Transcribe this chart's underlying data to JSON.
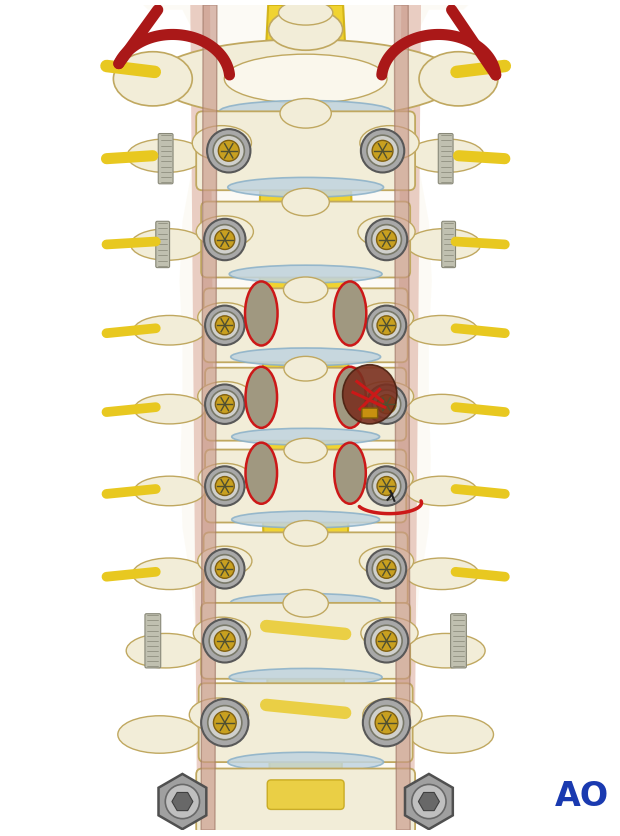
{
  "background_color": "#ffffff",
  "ao_text": "AO",
  "ao_color": "#1a3ab0",
  "ao_fontsize": 24,
  "figsize": [
    6.2,
    8.37
  ],
  "dpi": 100,
  "bone_color": "#f2edd8",
  "bone_light": "#faf7ec",
  "bone_outline": "#c0a860",
  "spinal_cord_yellow": "#f0d020",
  "disc_color": "#b8d8e8",
  "disc_outline": "#90b8cc",
  "screw_outer": "#909090",
  "screw_mid": "#c8c8c8",
  "screw_inner": "#b09830",
  "screw_dark": "#606060",
  "red_vessel": "#aa1818",
  "yellow_nerve": "#e8c820",
  "pink_strip": "#d8a090",
  "nerve_outline_red": "#cc1818",
  "brown_lesion": "#7a3020",
  "gray_nerve_fill": "#a09880",
  "disc_blue_gray": "#c0d4e0",
  "bolt_color": "#c8c8b0",
  "bolt_thread": "#b0b098",
  "white": "#ffffff"
}
